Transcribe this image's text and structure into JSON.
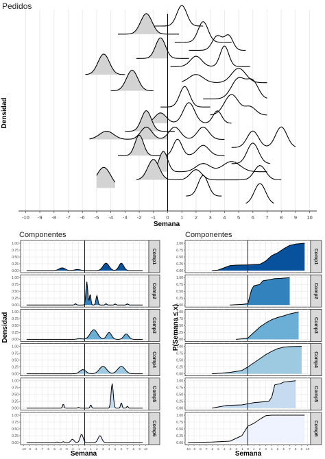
{
  "top_panel": {
    "title": "Pedidos",
    "xlabel": "Semana",
    "ylabel": "Densidad"
  },
  "left_panel": {
    "title": "Componentes",
    "xlabel": "Semana",
    "ylabel": "Densidad"
  },
  "right_panel": {
    "title": "Componentes",
    "xlabel": "Semana",
    "ylabel": "P(Semana ≤ x)"
  },
  "colors": {
    "ridge_fill": "#d3d3d3",
    "grid": "#e6e6e6",
    "strip_bg": "#d9d9d9",
    "comp_fills": [
      "#08519c",
      "#3182bd",
      "#6baed6",
      "#9ecae1",
      "#c6dbef",
      "#eff3ff"
    ]
  },
  "chart_data": [
    {
      "type": "area",
      "subtype": "ridgeline",
      "title": "Pedidos",
      "xlabel": "Semana",
      "ylabel": "Densidad",
      "xlim": [
        -10.5,
        10.5
      ],
      "x_ticks": [
        -10,
        -9,
        -8,
        -7,
        -6,
        -5,
        -4,
        -3,
        -2,
        -1,
        0,
        1,
        2,
        3,
        4,
        5,
        6,
        7,
        8,
        9,
        10
      ],
      "vline": 0,
      "grid": true,
      "ridges": [
        {
          "peaks": [
            [
              1.0,
              0.35,
              1.0
            ]
          ],
          "range": [
            -1.5,
            2.5
          ]
        },
        {
          "peaks": [
            [
              -1.5,
              0.4,
              1.0
            ]
          ],
          "range": [
            -3.5,
            0.8
          ]
        },
        {
          "peaks": [
            [
              2.5,
              0.35,
              1.0
            ]
          ],
          "range": [
            0.5,
            4.5
          ]
        },
        {
          "peaks": [
            [
              3.5,
              0.35,
              0.7
            ],
            [
              4.3,
              0.3,
              0.7
            ]
          ],
          "range": [
            1.5,
            5.5
          ]
        },
        {
          "peaks": [
            [
              -0.5,
              0.35,
              1.0
            ]
          ],
          "range": [
            -2.2,
            1.5
          ]
        },
        {
          "peaks": [
            [
              2.0,
              0.4,
              0.5
            ],
            [
              4.0,
              0.3,
              1.0
            ]
          ],
          "range": [
            0.2,
            5.8
          ]
        },
        {
          "peaks": [
            [
              -4.5,
              0.4,
              1.0
            ]
          ],
          "range": [
            -5.8,
            -3.0
          ]
        },
        {
          "peaks": [
            [
              2.0,
              0.5,
              0.4
            ],
            [
              5.0,
              0.5,
              0.7
            ]
          ],
          "range": [
            1.0,
            7.0
          ]
        },
        {
          "peaks": [
            [
              -2.5,
              0.4,
              1.0
            ]
          ],
          "range": [
            -4.0,
            -1.0
          ]
        },
        {
          "peaks": [
            [
              5.0,
              0.5,
              1.0
            ],
            [
              6.0,
              0.4,
              0.8
            ]
          ],
          "range": [
            2.5,
            7.0
          ]
        },
        {
          "peaks": [
            [
              1.2,
              0.35,
              1.0
            ]
          ],
          "range": [
            -0.5,
            3.0
          ]
        },
        {
          "peaks": [
            [
              4.5,
              0.5,
              1.0
            ],
            [
              5.8,
              0.4,
              0.4
            ]
          ],
          "range": [
            3.0,
            7.0
          ]
        },
        {
          "peaks": [
            [
              -0.5,
              0.4,
              0.5
            ],
            [
              1.5,
              0.4,
              1.0
            ],
            [
              3.5,
              0.3,
              0.6
            ]
          ],
          "range": [
            -1.5,
            4.5
          ]
        },
        {
          "peaks": [
            [
              -1.5,
              0.35,
              1.0
            ]
          ],
          "range": [
            -3.0,
            0.5
          ]
        },
        {
          "peaks": [
            [
              -4.3,
              0.5,
              0.4
            ],
            [
              -1.5,
              0.4,
              0.6
            ],
            [
              0.5,
              0.4,
              0.6
            ],
            [
              2.5,
              0.4,
              0.6
            ]
          ],
          "range": [
            -5.5,
            4.0
          ]
        },
        {
          "peaks": [
            [
              6.0,
              0.4,
              0.8
            ],
            [
              8.0,
              0.4,
              1.0
            ]
          ],
          "range": [
            4.5,
            9.0
          ]
        },
        {
          "peaks": [
            [
              -2.0,
              0.3,
              1.0
            ],
            [
              0.7,
              0.3,
              0.8
            ],
            [
              2.5,
              0.4,
              0.5
            ]
          ],
          "range": [
            -3.5,
            4.0
          ]
        },
        {
          "peaks": [
            [
              6.0,
              0.4,
              1.0
            ]
          ],
          "range": [
            4.5,
            7.2
          ]
        },
        {
          "peaks": [
            [
              -0.3,
              0.3,
              1.0
            ],
            [
              2.5,
              0.5,
              0.4
            ],
            [
              4.5,
              0.6,
              0.5
            ]
          ],
          "range": [
            -1.5,
            7.0
          ]
        },
        {
          "peaks": [
            [
              -1.0,
              0.4,
              1.0
            ],
            [
              2.0,
              0.4,
              0.5
            ],
            [
              6.5,
              0.4,
              0.7
            ]
          ],
          "range": [
            -2.2,
            8.0
          ]
        },
        {
          "peaks": [
            [
              -4.5,
              0.5,
              1.0
            ]
          ],
          "range": [
            -5.0,
            -3.7
          ]
        },
        {
          "peaks": [
            [
              2.5,
              0.35,
              1.0
            ]
          ],
          "range": [
            1.3,
            3.8
          ]
        },
        {
          "peaks": [
            [
              6.5,
              0.4,
              1.0
            ]
          ],
          "range": [
            5.5,
            7.5
          ]
        }
      ]
    },
    {
      "type": "area",
      "subtype": "density",
      "title": "Componentes",
      "xlabel": "Semana",
      "ylabel": "Densidad",
      "xlim": [
        -10.5,
        10.5
      ],
      "ylim": [
        0,
        1.0
      ],
      "y_ticks": [
        "0.00",
        "0.25",
        "0.50",
        "0.75",
        "1.00"
      ],
      "x_ticks": [
        -10,
        -9,
        -8,
        -7,
        -6,
        -5,
        -4,
        -3,
        -2,
        -1,
        0,
        1,
        2,
        3,
        4,
        5,
        6,
        7,
        8,
        9,
        10
      ],
      "vline": 0,
      "series": [
        {
          "name": "Comp1",
          "range": [
            -9.5,
            9.5
          ],
          "peaks": [
            [
              -3.7,
              0.5,
              0.1
            ],
            [
              -1.2,
              0.5,
              0.04
            ],
            [
              3.5,
              0.5,
              0.27
            ],
            [
              6.0,
              0.4,
              0.27
            ]
          ]
        },
        {
          "name": "Comp2",
          "range": [
            -9.5,
            9.5
          ],
          "peaks": [
            [
              0.35,
              0.15,
              0.85
            ],
            [
              0.9,
              0.12,
              0.4
            ],
            [
              2.0,
              0.15,
              0.35
            ],
            [
              -1.5,
              0.12,
              0.05
            ],
            [
              3.5,
              0.12,
              0.05
            ],
            [
              5.0,
              0.12,
              0.04
            ],
            [
              7.0,
              0.15,
              0.04
            ]
          ]
        },
        {
          "name": "Comp3",
          "range": [
            -9.5,
            9.5
          ],
          "peaks": [
            [
              1.5,
              0.6,
              0.35
            ],
            [
              4.0,
              0.4,
              0.25
            ],
            [
              6.8,
              0.4,
              0.2
            ],
            [
              -0.8,
              0.4,
              0.03
            ]
          ]
        },
        {
          "name": "Comp4",
          "range": [
            -9.5,
            9.5
          ],
          "peaks": [
            [
              -0.3,
              0.5,
              0.15
            ],
            [
              3.0,
              0.6,
              0.27
            ],
            [
              6.0,
              0.6,
              0.27
            ]
          ]
        },
        {
          "name": "Comp5",
          "range": [
            -9.5,
            9.5
          ],
          "peaks": [
            [
              4.5,
              0.18,
              0.9
            ],
            [
              6.0,
              0.12,
              0.2
            ],
            [
              -3.5,
              0.12,
              0.15
            ],
            [
              1.0,
              0.12,
              0.12
            ],
            [
              7.0,
              0.12,
              0.07
            ],
            [
              -1.0,
              0.12,
              0.03
            ]
          ]
        },
        {
          "name": "Comp6",
          "range": [
            -9.5,
            9.5
          ],
          "peaks": [
            [
              -0.5,
              0.25,
              0.3
            ],
            [
              -2.0,
              0.25,
              0.12
            ],
            [
              -3.5,
              0.15,
              0.03
            ],
            [
              2.5,
              0.3,
              0.25
            ],
            [
              -4.5,
              0.15,
              0.02
            ]
          ]
        }
      ]
    },
    {
      "type": "area",
      "subtype": "cdf",
      "title": "Componentes",
      "xlabel": "Semana",
      "ylabel": "P(Semana ≤ x)",
      "xlim": [
        -10.5,
        10.5
      ],
      "ylim": [
        0,
        1.0
      ],
      "y_ticks": [
        "0.00",
        "0.25",
        "0.50",
        "0.75",
        "1.00"
      ],
      "x_ticks": [
        -10,
        -9,
        -8,
        -7,
        -6,
        -5,
        -4,
        -3,
        -2,
        -1,
        0,
        1,
        2,
        3,
        4,
        5,
        6,
        7,
        8,
        9,
        10
      ],
      "vline": 0,
      "series": [
        {
          "name": "Comp1",
          "points": [
            [
              -6,
              0
            ],
            [
              -5,
              0.02
            ],
            [
              -4,
              0.1
            ],
            [
              -3,
              0.18
            ],
            [
              -2,
              0.2
            ],
            [
              0,
              0.21
            ],
            [
              2,
              0.23
            ],
            [
              3,
              0.35
            ],
            [
              4,
              0.55
            ],
            [
              5,
              0.65
            ],
            [
              6,
              0.8
            ],
            [
              7,
              0.92
            ],
            [
              8,
              0.97
            ],
            [
              9.5,
              1.0
            ]
          ]
        },
        {
          "name": "Comp2",
          "points": [
            [
              -3,
              0
            ],
            [
              -1,
              0.02
            ],
            [
              0,
              0.05
            ],
            [
              0.3,
              0.3
            ],
            [
              0.6,
              0.55
            ],
            [
              1,
              0.7
            ],
            [
              2,
              0.75
            ],
            [
              2.5,
              0.88
            ],
            [
              3.5,
              0.92
            ],
            [
              4.5,
              0.96
            ],
            [
              5.5,
              0.97
            ],
            [
              7,
              1.0
            ]
          ]
        },
        {
          "name": "Comp3",
          "points": [
            [
              -2,
              0
            ],
            [
              -1,
              0.02
            ],
            [
              0,
              0.05
            ],
            [
              1,
              0.25
            ],
            [
              2,
              0.45
            ],
            [
              3,
              0.6
            ],
            [
              4,
              0.72
            ],
            [
              5,
              0.8
            ],
            [
              6,
              0.86
            ],
            [
              7,
              0.93
            ],
            [
              8.5,
              1.0
            ]
          ]
        },
        {
          "name": "Comp4",
          "points": [
            [
              -6,
              0
            ],
            [
              -3,
              0.05
            ],
            [
              -1,
              0.12
            ],
            [
              0,
              0.25
            ],
            [
              1,
              0.4
            ],
            [
              2,
              0.55
            ],
            [
              3,
              0.7
            ],
            [
              4,
              0.82
            ],
            [
              5,
              0.92
            ],
            [
              6,
              0.97
            ],
            [
              7,
              0.99
            ],
            [
              9,
              1.0
            ]
          ]
        },
        {
          "name": "Comp5",
          "points": [
            [
              -6,
              0
            ],
            [
              -3.5,
              0.1
            ],
            [
              -1,
              0.12
            ],
            [
              1,
              0.2
            ],
            [
              3.5,
              0.25
            ],
            [
              4,
              0.4
            ],
            [
              4.5,
              0.85
            ],
            [
              5.5,
              0.9
            ],
            [
              6,
              0.95
            ],
            [
              8,
              1.0
            ]
          ]
        },
        {
          "name": "Comp6",
          "points": [
            [
              -10,
              0
            ],
            [
              -6,
              0.02
            ],
            [
              -3,
              0.05
            ],
            [
              -2,
              0.15
            ],
            [
              -1,
              0.25
            ],
            [
              0,
              0.6
            ],
            [
              1,
              0.7
            ],
            [
              2,
              0.85
            ],
            [
              3,
              0.98
            ],
            [
              4,
              1.0
            ],
            [
              9.5,
              1.0
            ]
          ]
        }
      ]
    }
  ]
}
